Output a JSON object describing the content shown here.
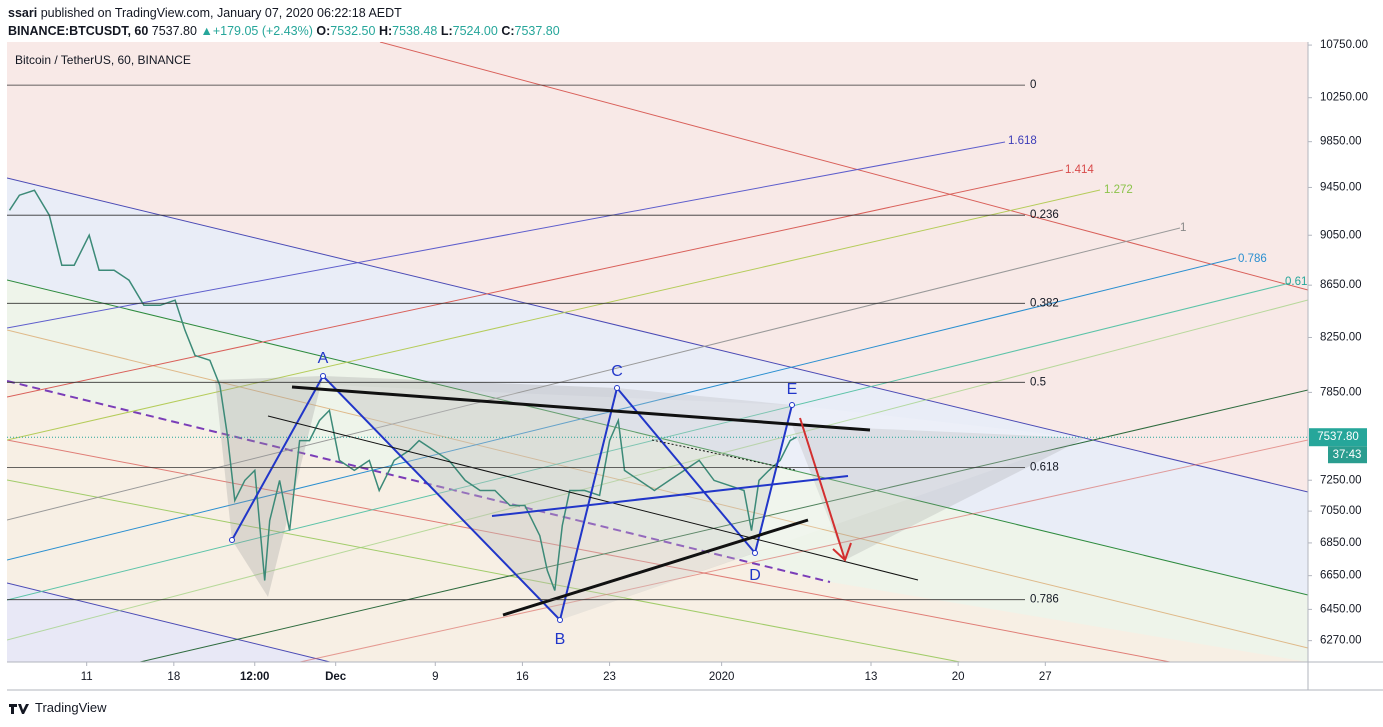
{
  "header": {
    "author": "ssari",
    "published": "published on TradingView.com, January 07, 2020 06:22:18 AEDT",
    "symbol": "BINANCE:BTCUSDT, 60",
    "last": "7537.80",
    "arrow": "▲",
    "change": "+179.05 (+2.43%)",
    "ohlc": [
      {
        "label": "O:",
        "value": "7532.50"
      },
      {
        "label": "H:",
        "value": "7538.48"
      },
      {
        "label": "L:",
        "value": "7524.00"
      },
      {
        "label": "C:",
        "value": "7537.80"
      }
    ]
  },
  "chart_data": {
    "type": "line",
    "title": "Bitcoin / TetherUS, 60, BINANCE",
    "color": "#3c8a78",
    "log_scale": true,
    "x": [
      4.8,
      5.6,
      6.8,
      8.0,
      9.0,
      10.0,
      11.2,
      12.0,
      13.2,
      14.4,
      15.6,
      16.9,
      18.1,
      18.9,
      19.7,
      20.9,
      21.7,
      22.3,
      22.9,
      23.7,
      24.5,
      25.3,
      25.7,
      26.5,
      27.3,
      28.1,
      28.9,
      29.7,
      30.5,
      31.3,
      32.5,
      33.7,
      34.5,
      35.7,
      36.9,
      37.7,
      38.9,
      40.1,
      41.4,
      42.6,
      43.8,
      45.0,
      46.2,
      47.4,
      48.0,
      48.6,
      49.2,
      49.8,
      51.0,
      52.2,
      53.0,
      53.7,
      54.2,
      55.4,
      56.6,
      57.8,
      59.0,
      60.2,
      61.4,
      62.6,
      63.8,
      64.4,
      65.0,
      65.8,
      66.7,
      67.5,
      68.0
    ],
    "values": [
      9257,
      9384,
      9426,
      9216,
      8808,
      8808,
      9050,
      8767,
      8767,
      8689,
      8494,
      8494,
      8533,
      8304,
      8117,
      8081,
      7899,
      7550,
      7118,
      7249,
      7315,
      6621,
      6990,
      7249,
      6927,
      7515,
      7515,
      7653,
      7723,
      7381,
      7315,
      7381,
      7183,
      7381,
      7448,
      7515,
      7448,
      7381,
      7249,
      7183,
      7183,
      7086,
      7086,
      6895,
      6681,
      6561,
      6959,
      7183,
      7183,
      7151,
      7515,
      7653,
      7315,
      7249,
      7183,
      7249,
      7315,
      7381,
      7249,
      7216,
      7183,
      6927,
      7249,
      7315,
      7381,
      7515,
      7537.8
    ],
    "xlim": [
      4.6,
      109.1
    ],
    "xticks": [
      {
        "value": 11,
        "label": "11"
      },
      {
        "value": 18,
        "label": "18"
      },
      {
        "value": 24.5,
        "label": "12:00"
      },
      {
        "value": 31,
        "label": "Dec"
      },
      {
        "value": 39,
        "label": "9"
      },
      {
        "value": 46,
        "label": "16"
      },
      {
        "value": 53,
        "label": "23"
      },
      {
        "value": 62,
        "label": "2020"
      },
      {
        "value": 74,
        "label": "13"
      },
      {
        "value": 81,
        "label": "20"
      },
      {
        "value": 88,
        "label": "27"
      }
    ],
    "ylim": [
      6150,
      10780
    ],
    "yticks": [
      {
        "value": 10750,
        "label": "10750.00"
      },
      {
        "value": 10250,
        "label": "10250.00"
      },
      {
        "value": 9850,
        "label": "9850.00"
      },
      {
        "value": 9450,
        "label": "9450.00"
      },
      {
        "value": 9050,
        "label": "9050.00"
      },
      {
        "value": 8650,
        "label": "8650.00"
      },
      {
        "value": 8250,
        "label": "8250.00"
      },
      {
        "value": 7850,
        "label": "7850.00"
      },
      {
        "value": 7250,
        "label": "7250.00"
      },
      {
        "value": 7050,
        "label": "7050.00"
      },
      {
        "value": 6850,
        "label": "6850.00"
      },
      {
        "value": 6650,
        "label": "6650.00"
      },
      {
        "value": 6450,
        "label": "6450.00"
      },
      {
        "value": 6270,
        "label": "6270.00"
      }
    ],
    "last_price": {
      "value": 7537.8,
      "label": "7537.80"
    },
    "countdown": "37:43",
    "fib_levels": [
      {
        "label": "0",
        "value": 10367
      },
      {
        "label": "0.236",
        "value": 9216
      },
      {
        "label": "0.382",
        "value": 8509
      },
      {
        "label": "0.5",
        "value": 7922
      },
      {
        "label": "0.618",
        "value": 7334
      },
      {
        "label": "0.786",
        "value": 6507
      }
    ],
    "channel_levels": [
      {
        "label": "1.618",
        "color": "#3d3db8"
      },
      {
        "label": "1.414",
        "color": "#d84a4a"
      },
      {
        "label": "1.272",
        "color": "#8bc34a"
      },
      {
        "label": "1",
        "color": "#888888"
      },
      {
        "label": "0.786",
        "color": "#2a8fd0"
      },
      {
        "label": "0.61",
        "color": "#26a69a"
      }
    ],
    "pattern_labels": [
      "A",
      "B",
      "C",
      "D",
      "E"
    ]
  },
  "footer": {
    "brand": "TradingView"
  }
}
